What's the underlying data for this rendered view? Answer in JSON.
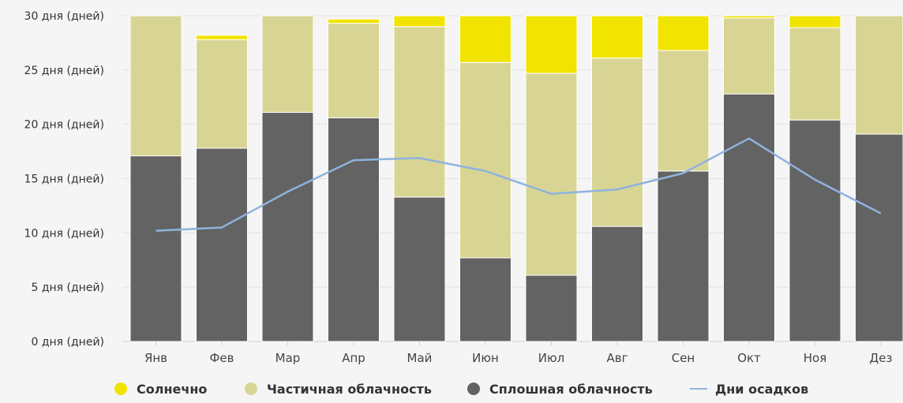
{
  "chart_data": {
    "type": "bar",
    "stacked": true,
    "title": "",
    "xlabel": "",
    "ylabel": "",
    "ylim": [
      0,
      30
    ],
    "y_ticks": [
      {
        "value": 0,
        "label": "0 дня (дней)"
      },
      {
        "value": 5,
        "label": "5 дня (дней)"
      },
      {
        "value": 10,
        "label": "10 дня (дней)"
      },
      {
        "value": 15,
        "label": "15 дня (дней)"
      },
      {
        "value": 20,
        "label": "20 дня (дней)"
      },
      {
        "value": 25,
        "label": "25 дня (дней)"
      },
      {
        "value": 30,
        "label": "30 дня (дней)"
      }
    ],
    "categories": [
      "Янв",
      "Фев",
      "Мар",
      "Апр",
      "Май",
      "Июн",
      "Июл",
      "Авг",
      "Сен",
      "Окт",
      "Ноя",
      "Дез"
    ],
    "series": [
      {
        "name": "Сплошная облачность",
        "kind": "bar",
        "color": "#636363",
        "values": [
          17.1,
          17.8,
          21.1,
          20.6,
          13.3,
          7.7,
          6.1,
          10.6,
          15.7,
          22.8,
          20.4,
          19.1
        ]
      },
      {
        "name": "Частичная облачность",
        "kind": "bar",
        "color": "#d8d594",
        "values": [
          12.9,
          10.0,
          8.9,
          8.7,
          15.7,
          18.0,
          18.6,
          15.5,
          11.1,
          7.0,
          8.5,
          10.9
        ]
      },
      {
        "name": "Солнечно",
        "kind": "bar",
        "color": "#f1e400",
        "values": [
          0.0,
          0.4,
          0.0,
          0.4,
          1.0,
          4.3,
          5.3,
          3.9,
          3.2,
          0.2,
          1.1,
          0.0
        ]
      },
      {
        "name": "Дни осадков",
        "kind": "line",
        "color": "#8fb3de",
        "values": [
          10.2,
          10.5,
          13.8,
          16.7,
          16.9,
          15.7,
          13.6,
          14.0,
          15.5,
          18.7,
          14.9,
          11.8
        ]
      }
    ],
    "legend": {
      "position": "bottom",
      "items": [
        {
          "label": "Солнечно",
          "color": "#f1e400",
          "marker": "dot"
        },
        {
          "label": "Частичная облачность",
          "color": "#d8d594",
          "marker": "dot"
        },
        {
          "label": "Сплошная облачность",
          "color": "#636363",
          "marker": "dot"
        },
        {
          "label": "Дни осадков",
          "color": "#8fb3de",
          "marker": "line"
        }
      ]
    },
    "grid": true
  }
}
